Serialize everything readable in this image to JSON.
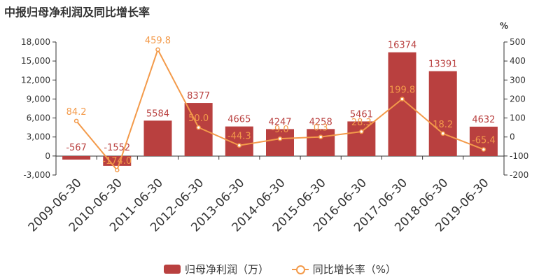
{
  "chart_data": {
    "type": "bar+line",
    "title": "中报归母净利润及同比增长率",
    "categories": [
      "2009-06-30",
      "2010-06-30",
      "2011-06-30",
      "2012-06-30",
      "2013-06-30",
      "2014-06-30",
      "2015-06-30",
      "2016-06-30",
      "2017-06-30",
      "2018-06-30",
      "2019-06-30"
    ],
    "series": [
      {
        "name": "归母净利润（万）",
        "type": "bar",
        "axis": "left",
        "values": [
          -567,
          -1552,
          5584,
          8377,
          4665,
          4247,
          4258,
          5461,
          16374,
          13391,
          4632
        ],
        "labels": [
          "-567",
          "-1552",
          "5584",
          "8377",
          "4665",
          "4247",
          "4258",
          "5461",
          "16374",
          "13391",
          "4632"
        ]
      },
      {
        "name": "同比增长率（%）",
        "type": "line",
        "axis": "right",
        "values": [
          84.2,
          -174.0,
          459.8,
          50.0,
          -44.3,
          -9.0,
          0.3,
          28.3,
          199.8,
          18.2,
          -65.4
        ],
        "labels": [
          "84.2",
          "-174.0",
          "459.8",
          "50.0",
          "-44.3",
          "-9.0",
          "0.3",
          "28.3",
          "199.8",
          "18.2",
          "-65.4"
        ]
      }
    ],
    "y_left": {
      "range": [
        -3000,
        18000
      ],
      "ticks": [
        "-3,000",
        "0",
        "3,000",
        "6,000",
        "9,000",
        "12,000",
        "15,000",
        "18,000"
      ]
    },
    "y_right": {
      "label": "%",
      "range": [
        -200,
        500
      ],
      "ticks": [
        "-200",
        "-100",
        "0",
        "100",
        "200",
        "300",
        "400",
        "500"
      ]
    },
    "grid": false,
    "legend": "bottom-center",
    "colors": {
      "bar": "#b9403f",
      "line": "#f39a4a",
      "bar_label": "#b9403f",
      "axis_text": "#333333"
    }
  }
}
